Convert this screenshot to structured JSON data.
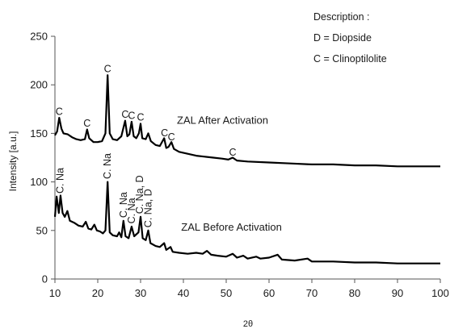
{
  "chart_data": {
    "type": "line",
    "title": "",
    "xlabel": "2θ",
    "ylabel": "Intensity [a.u.]",
    "xlim": [
      10,
      100
    ],
    "ylim": [
      0,
      250
    ],
    "x_ticks": [
      10,
      20,
      30,
      40,
      50,
      60,
      70,
      80,
      90,
      100
    ],
    "y_ticks": [
      0,
      50,
      100,
      150,
      200,
      250
    ],
    "grid": false,
    "legend_position": "top-right",
    "legend": {
      "heading": "Description :",
      "entries": [
        "D = Diopside",
        "C = Clinoptilolite"
      ]
    },
    "series": [
      {
        "name": "ZAL After Activation",
        "color": "#000000",
        "points": [
          [
            10,
            148
          ],
          [
            10.5,
            152
          ],
          [
            11,
            166
          ],
          [
            11.5,
            155
          ],
          [
            12,
            150
          ],
          [
            13,
            149
          ],
          [
            14,
            146
          ],
          [
            15,
            144
          ],
          [
            16,
            143
          ],
          [
            17,
            144
          ],
          [
            17.5,
            154
          ],
          [
            18,
            145
          ],
          [
            19,
            141
          ],
          [
            20,
            141
          ],
          [
            21,
            142
          ],
          [
            21.8,
            150
          ],
          [
            22.3,
            210
          ],
          [
            22.8,
            150
          ],
          [
            23.5,
            144
          ],
          [
            24.5,
            143
          ],
          [
            25.5,
            147
          ],
          [
            26.4,
            163
          ],
          [
            26.9,
            147
          ],
          [
            27.4,
            149
          ],
          [
            27.9,
            162
          ],
          [
            28.4,
            147
          ],
          [
            29,
            145
          ],
          [
            29.6,
            150
          ],
          [
            30,
            160
          ],
          [
            30.4,
            145
          ],
          [
            31.2,
            144
          ],
          [
            31.8,
            150
          ],
          [
            32.4,
            142
          ],
          [
            33.5,
            138
          ],
          [
            34.5,
            137
          ],
          [
            35.5,
            145
          ],
          [
            36,
            135
          ],
          [
            36.5,
            136
          ],
          [
            37.2,
            141
          ],
          [
            37.8,
            134
          ],
          [
            39,
            131
          ],
          [
            41,
            129
          ],
          [
            43,
            127
          ],
          [
            45,
            126
          ],
          [
            47,
            125
          ],
          [
            49,
            124
          ],
          [
            50.5,
            123
          ],
          [
            51.5,
            125
          ],
          [
            52.5,
            122
          ],
          [
            55,
            121
          ],
          [
            60,
            120
          ],
          [
            65,
            119
          ],
          [
            70,
            118
          ],
          [
            75,
            118
          ],
          [
            80,
            117
          ],
          [
            85,
            117
          ],
          [
            90,
            116
          ],
          [
            95,
            116
          ],
          [
            100,
            116
          ]
        ]
      },
      {
        "name": "ZAL Before Activation",
        "color": "#000000",
        "points": [
          [
            10,
            64
          ],
          [
            10.4,
            85
          ],
          [
            10.9,
            68
          ],
          [
            11.3,
            86
          ],
          [
            11.8,
            68
          ],
          [
            12.3,
            64
          ],
          [
            12.9,
            70
          ],
          [
            13.5,
            60
          ],
          [
            14.5,
            58
          ],
          [
            15.5,
            55
          ],
          [
            16.5,
            54
          ],
          [
            17.2,
            59
          ],
          [
            17.8,
            52
          ],
          [
            18.5,
            51
          ],
          [
            19.2,
            56
          ],
          [
            19.8,
            50
          ],
          [
            20.5,
            49
          ],
          [
            21.2,
            47
          ],
          [
            21.8,
            50
          ],
          [
            22.3,
            100
          ],
          [
            22.8,
            48
          ],
          [
            23.5,
            45
          ],
          [
            24.5,
            44
          ],
          [
            25,
            48
          ],
          [
            25.5,
            43
          ],
          [
            26,
            60
          ],
          [
            26.5,
            44
          ],
          [
            27.2,
            42
          ],
          [
            27.9,
            54
          ],
          [
            28.5,
            44
          ],
          [
            29.5,
            48
          ],
          [
            30,
            64
          ],
          [
            30.5,
            42
          ],
          [
            31.2,
            40
          ],
          [
            31.8,
            50
          ],
          [
            32.3,
            37
          ],
          [
            33.5,
            34
          ],
          [
            34.5,
            33
          ],
          [
            35.5,
            37
          ],
          [
            36,
            30
          ],
          [
            37,
            33
          ],
          [
            37.5,
            28
          ],
          [
            39,
            27
          ],
          [
            41,
            26
          ],
          [
            43,
            27
          ],
          [
            44.5,
            26
          ],
          [
            45.5,
            29
          ],
          [
            46.5,
            25
          ],
          [
            48,
            24
          ],
          [
            50,
            23
          ],
          [
            51.5,
            26
          ],
          [
            52.5,
            22
          ],
          [
            54,
            24
          ],
          [
            55,
            21
          ],
          [
            57,
            23
          ],
          [
            58,
            21
          ],
          [
            60,
            22
          ],
          [
            62,
            25
          ],
          [
            63,
            20
          ],
          [
            66,
            19
          ],
          [
            69,
            21
          ],
          [
            70,
            18
          ],
          [
            75,
            18
          ],
          [
            80,
            17
          ],
          [
            85,
            17
          ],
          [
            90,
            16
          ],
          [
            95,
            16
          ],
          [
            100,
            16
          ]
        ]
      }
    ],
    "annotations": [
      {
        "text": "ZAL After Activation",
        "x": 38.5,
        "y": 160
      },
      {
        "text": "ZAL Before Activation",
        "x": 39.5,
        "y": 50
      }
    ],
    "peak_labels": [
      {
        "text": "C",
        "x": 11,
        "y": 169,
        "rotate": false
      },
      {
        "text": "C",
        "x": 17.5,
        "y": 157,
        "rotate": false
      },
      {
        "text": "C",
        "x": 22.3,
        "y": 213,
        "rotate": false
      },
      {
        "text": "C",
        "x": 26.4,
        "y": 166,
        "rotate": false
      },
      {
        "text": "C",
        "x": 27.9,
        "y": 165,
        "rotate": false
      },
      {
        "text": "C",
        "x": 30,
        "y": 163,
        "rotate": false
      },
      {
        "text": "C",
        "x": 35.6,
        "y": 147,
        "rotate": false
      },
      {
        "text": "C",
        "x": 37.2,
        "y": 143,
        "rotate": false
      },
      {
        "text": "C",
        "x": 51.5,
        "y": 127,
        "rotate": false
      },
      {
        "text": "C. Na",
        "x": 11.2,
        "y": 88,
        "rotate": true
      },
      {
        "text": "C. Na",
        "x": 22.3,
        "y": 103,
        "rotate": true
      },
      {
        "text": "C. Na",
        "x": 26,
        "y": 63,
        "rotate": true
      },
      {
        "text": "C. Na",
        "x": 27.9,
        "y": 57,
        "rotate": true
      },
      {
        "text": "C. Na, D",
        "x": 29.8,
        "y": 67,
        "rotate": true
      },
      {
        "text": "C. Na, D",
        "x": 31.8,
        "y": 53,
        "rotate": true
      }
    ]
  }
}
